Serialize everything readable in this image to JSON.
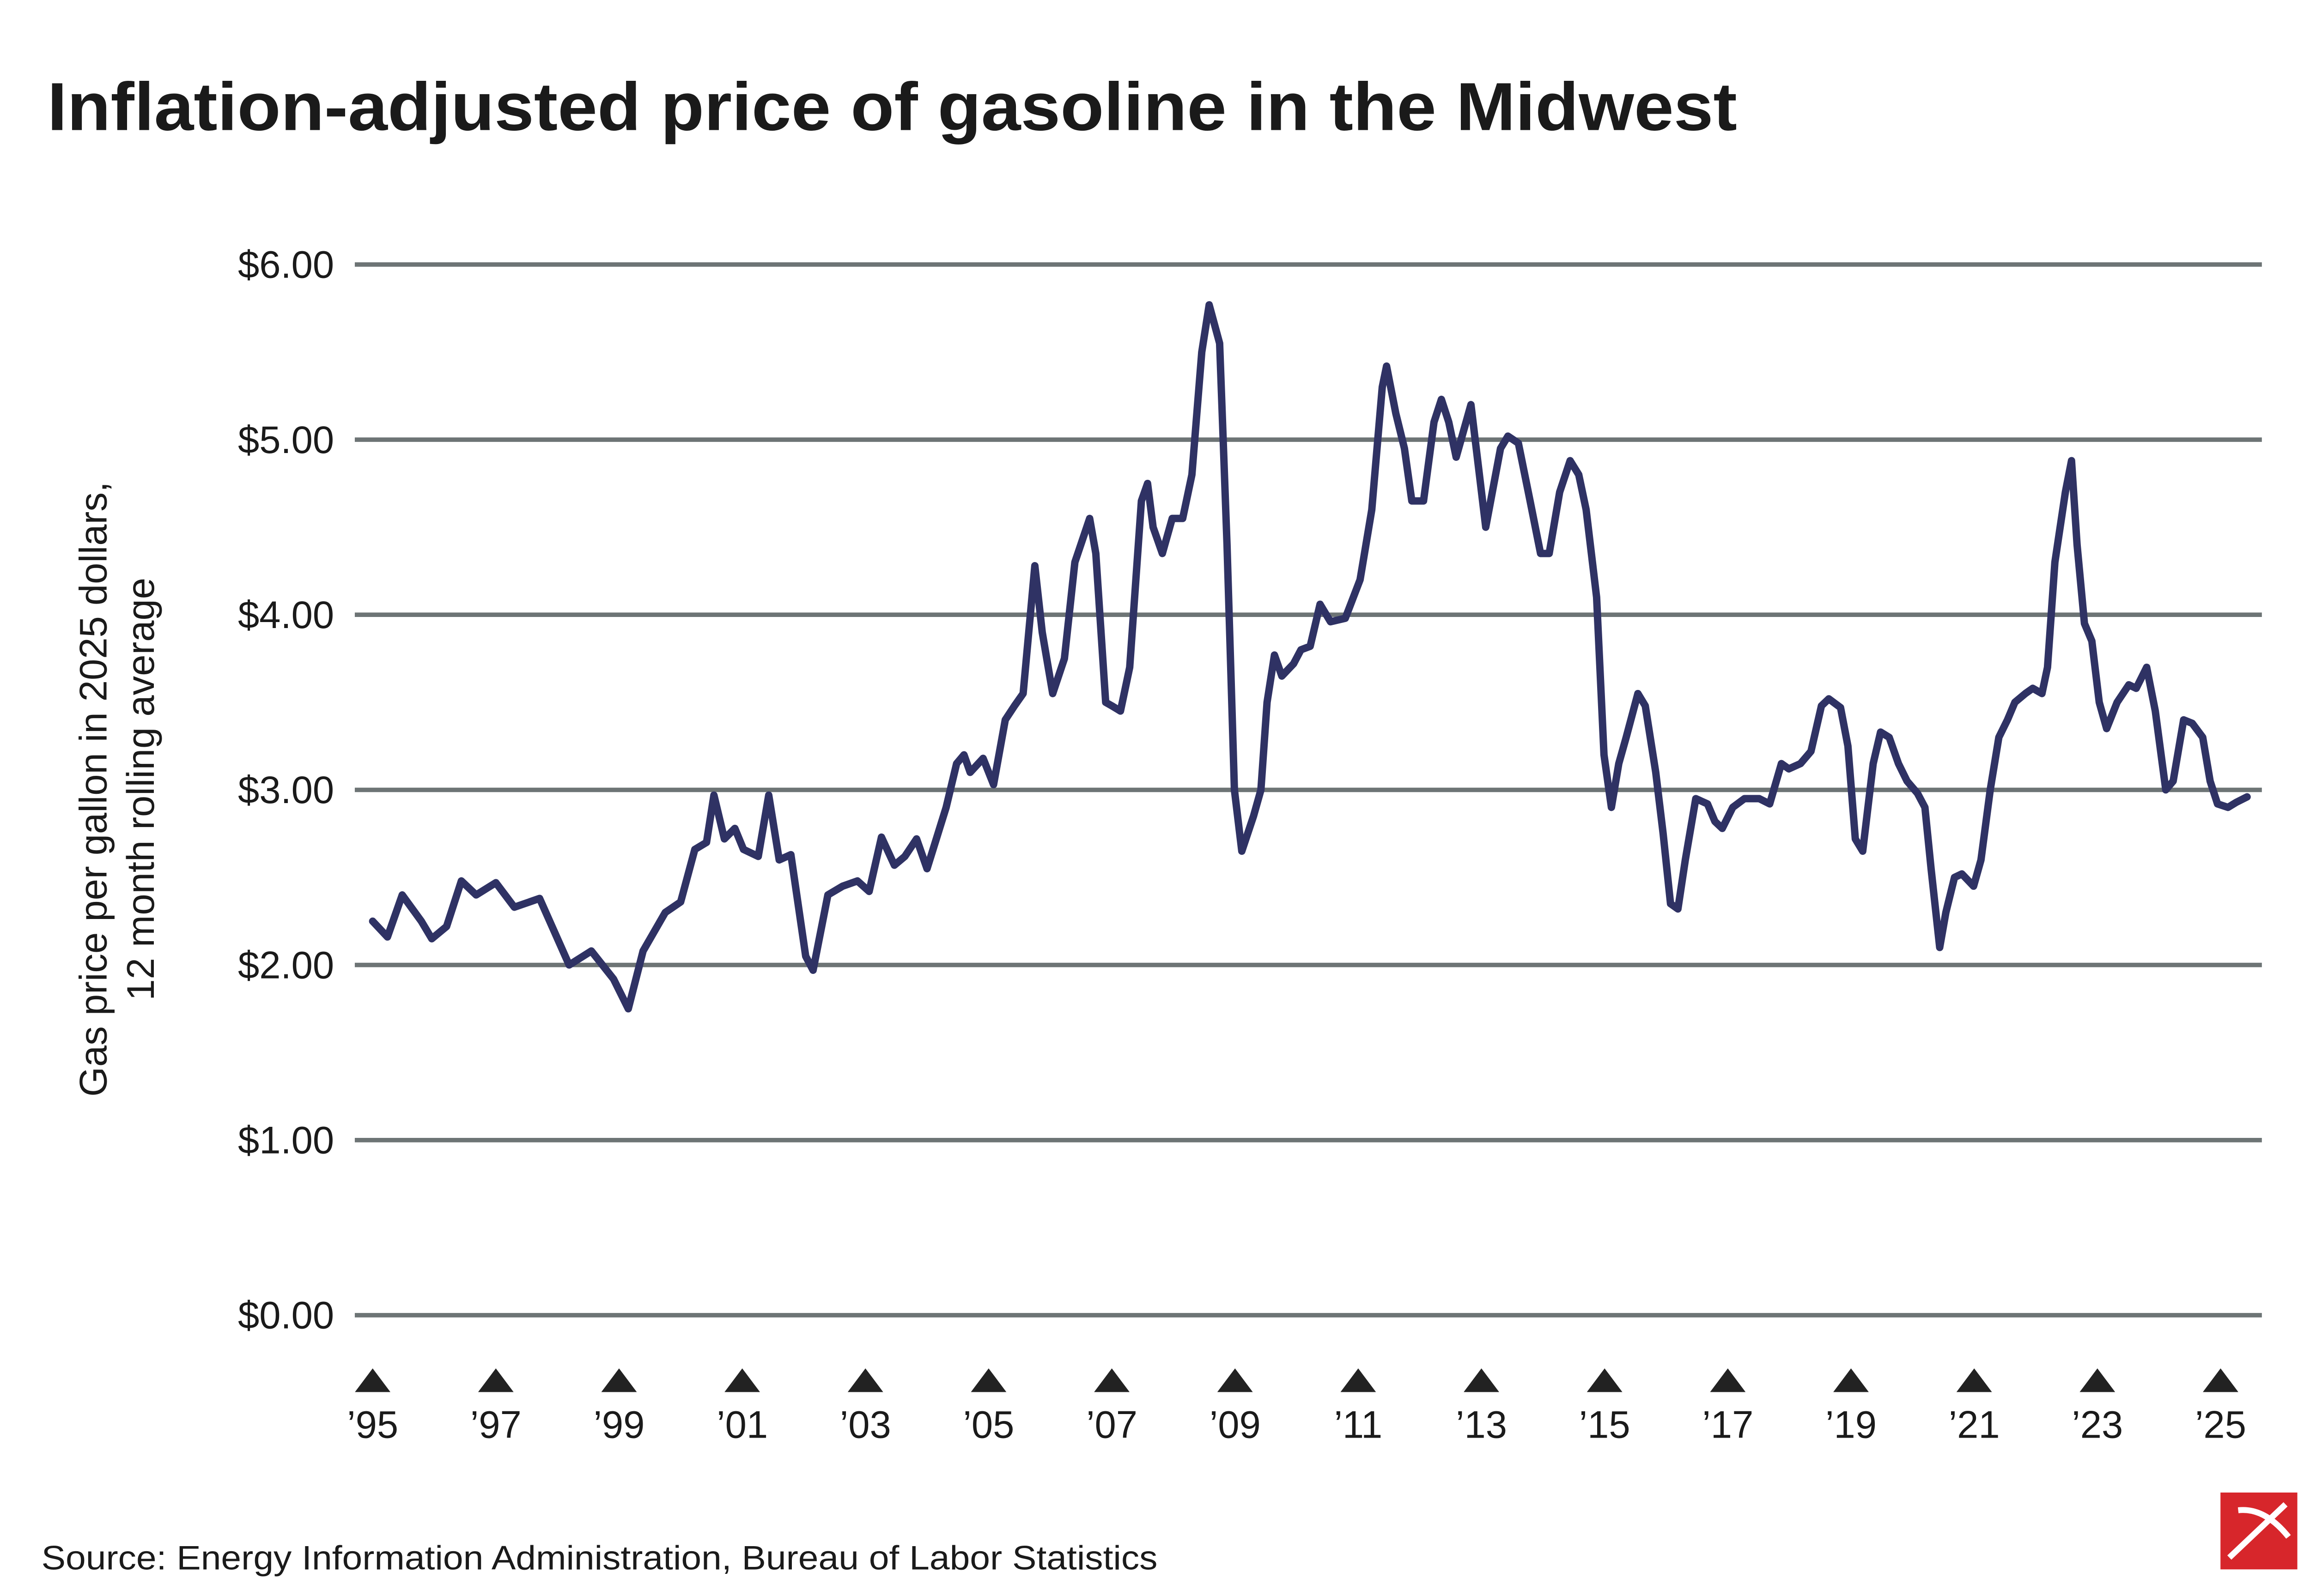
{
  "chart_data": {
    "type": "line",
    "title": "Inflation-adjusted price of gasoline in the Midwest",
    "y_label": [
      "Gas price per gallon in 2025 dollars,",
      "12 month rolling average"
    ],
    "source": "Source: Energy Information Administration, Bureau of Labor Statistics",
    "xlim": [
      1994.71,
      2025.67
    ],
    "xticks": [
      {
        "value": 1995,
        "label": "’95"
      },
      {
        "value": 1997,
        "label": "’97"
      },
      {
        "value": 1999,
        "label": "’99"
      },
      {
        "value": 2001,
        "label": "’01"
      },
      {
        "value": 2003,
        "label": "’03"
      },
      {
        "value": 2005,
        "label": "’05"
      },
      {
        "value": 2007,
        "label": "’07"
      },
      {
        "value": 2009,
        "label": "’09"
      },
      {
        "value": 2011,
        "label": "’11"
      },
      {
        "value": 2013,
        "label": "’13"
      },
      {
        "value": 2015,
        "label": "’15"
      },
      {
        "value": 2017,
        "label": "’17"
      },
      {
        "value": 2019,
        "label": "’19"
      },
      {
        "value": 2021,
        "label": "’21"
      },
      {
        "value": 2023,
        "label": "’23"
      },
      {
        "value": 2025,
        "label": "’25"
      }
    ],
    "ylim": [
      0,
      6
    ],
    "yticks": [
      {
        "value": 0,
        "label": "$0.00"
      },
      {
        "value": 1,
        "label": "$1.00"
      },
      {
        "value": 2,
        "label": "$2.00"
      },
      {
        "value": 3,
        "label": "$3.00"
      },
      {
        "value": 4,
        "label": "$4.00"
      },
      {
        "value": 5,
        "label": "$5.00"
      },
      {
        "value": 6,
        "label": "$6.00"
      }
    ],
    "grid": true,
    "series": [
      {
        "color": "#2f3264",
        "x": [
          1995.0,
          1995.24,
          1995.48,
          1995.79,
          1995.96,
          1996.2,
          1996.44,
          1996.68,
          1997.0,
          1997.3,
          1997.71,
          1998.19,
          1998.55,
          1998.91,
          1999.15,
          1999.39,
          1999.75,
          2000.0,
          2000.23,
          2000.42,
          2000.54,
          2000.71,
          2000.88,
          2001.02,
          2001.26,
          2001.43,
          2001.6,
          2001.79,
          2002.03,
          2002.15,
          2002.39,
          2002.63,
          2002.87,
          2003.06,
          2003.26,
          2003.47,
          2003.64,
          2003.83,
          2004.0,
          2004.31,
          2004.48,
          2004.6,
          2004.7,
          2004.91,
          2005.08,
          2005.27,
          2005.42,
          2005.56,
          2005.75,
          2005.87,
          2006.04,
          2006.23,
          2006.4,
          2006.64,
          2006.74,
          2006.9,
          2007.0,
          2007.14,
          2007.29,
          2007.48,
          2007.58,
          2007.67,
          2007.82,
          2007.98,
          2008.15,
          2008.3,
          2008.46,
          2008.58,
          2008.75,
          2008.87,
          2008.99,
          2009.11,
          2009.3,
          2009.42,
          2009.52,
          2009.64,
          2009.76,
          2009.95,
          2010.07,
          2010.22,
          2010.38,
          2010.55,
          2010.79,
          2011.03,
          2011.22,
          2011.39,
          2011.46,
          2011.61,
          2011.75,
          2011.87,
          2012.06,
          2012.23,
          2012.35,
          2012.47,
          2012.59,
          2012.71,
          2012.83,
          2012.95,
          2013.07,
          2013.31,
          2013.43,
          2013.6,
          2013.79,
          2013.96,
          2014.1,
          2014.27,
          2014.44,
          2014.58,
          2014.7,
          2014.87,
          2014.99,
          2015.11,
          2015.23,
          2015.35,
          2015.54,
          2015.66,
          2015.83,
          2015.95,
          2016.07,
          2016.19,
          2016.31,
          2016.48,
          2016.67,
          2016.79,
          2016.91,
          2017.08,
          2017.27,
          2017.39,
          2017.51,
          2017.68,
          2017.87,
          2017.99,
          2018.18,
          2018.35,
          2018.52,
          2018.64,
          2018.83,
          2018.95,
          2019.07,
          2019.19,
          2019.36,
          2019.48,
          2019.62,
          2019.77,
          2019.91,
          2020.08,
          2020.2,
          2020.3,
          2020.44,
          2020.54,
          2020.68,
          2020.8,
          2020.99,
          2021.11,
          2021.26,
          2021.4,
          2021.54,
          2021.66,
          2021.83,
          2021.95,
          2022.1,
          2022.19,
          2022.31,
          2022.48,
          2022.58,
          2022.67,
          2022.79,
          2022.91,
          2023.03,
          2023.15,
          2023.32,
          2023.51,
          2023.63,
          2023.8,
          2023.94,
          2024.11,
          2024.23,
          2024.4,
          2024.54,
          2024.71,
          2024.83,
          2024.95,
          2025.12,
          2025.26,
          2025.43
        ],
        "values": [
          2.25,
          2.16,
          2.4,
          2.25,
          2.15,
          2.22,
          2.48,
          2.4,
          2.47,
          2.33,
          2.38,
          2.0,
          2.08,
          1.92,
          1.75,
          2.08,
          2.3,
          2.36,
          2.66,
          2.7,
          2.97,
          2.72,
          2.78,
          2.66,
          2.62,
          2.97,
          2.6,
          2.63,
          2.05,
          1.97,
          2.4,
          2.45,
          2.48,
          2.42,
          2.73,
          2.57,
          2.62,
          2.72,
          2.55,
          2.9,
          3.15,
          3.2,
          3.1,
          3.18,
          3.03,
          3.4,
          3.48,
          3.55,
          4.28,
          3.9,
          3.55,
          3.75,
          4.3,
          4.55,
          4.35,
          3.5,
          3.48,
          3.45,
          3.7,
          4.65,
          4.75,
          4.5,
          4.35,
          4.55,
          4.55,
          4.8,
          5.5,
          5.77,
          5.55,
          4.4,
          3.0,
          2.65,
          2.85,
          3.0,
          3.5,
          3.77,
          3.65,
          3.72,
          3.8,
          3.82,
          4.06,
          3.96,
          3.98,
          4.2,
          4.6,
          5.3,
          5.42,
          5.15,
          4.95,
          4.65,
          4.65,
          5.1,
          5.23,
          5.1,
          4.9,
          5.05,
          5.2,
          4.85,
          4.5,
          4.95,
          5.02,
          4.98,
          4.65,
          4.35,
          4.35,
          4.7,
          4.88,
          4.8,
          4.6,
          4.1,
          3.2,
          2.9,
          3.15,
          3.3,
          3.55,
          3.48,
          3.1,
          2.75,
          2.35,
          2.32,
          2.6,
          2.95,
          2.92,
          2.82,
          2.78,
          2.9,
          2.95,
          2.95,
          2.95,
          2.92,
          3.15,
          3.12,
          3.15,
          3.22,
          3.48,
          3.52,
          3.47,
          3.25,
          2.72,
          2.65,
          3.15,
          3.33,
          3.3,
          3.15,
          3.05,
          2.98,
          2.9,
          2.55,
          2.1,
          2.3,
          2.5,
          2.52,
          2.45,
          2.6,
          3.0,
          3.3,
          3.4,
          3.5,
          3.55,
          3.58,
          3.55,
          3.7,
          4.3,
          4.7,
          4.88,
          4.4,
          3.95,
          3.85,
          3.5,
          3.35,
          3.5,
          3.6,
          3.58,
          3.7,
          3.45,
          3.0,
          3.05,
          3.4,
          3.38,
          3.3,
          3.05,
          2.92,
          2.9,
          2.93,
          2.96
        ]
      }
    ]
  }
}
